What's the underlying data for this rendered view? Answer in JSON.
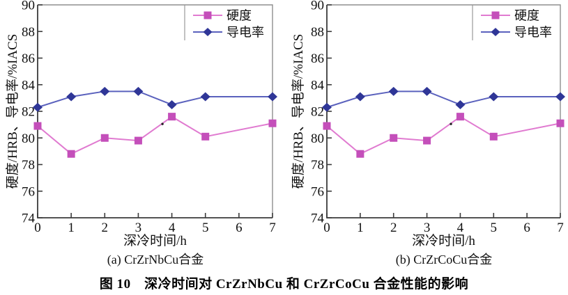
{
  "figure": {
    "caption": "图 10　深冷时间对 CrZrNbCu 和 CrZrCoCu 合金性能的影响"
  },
  "axes": {
    "y_label": "硬度/HRB、导电率/%IACS",
    "x_label": "深冷时间/h",
    "y_ticks": [
      74,
      76,
      78,
      80,
      82,
      84,
      86,
      88,
      90
    ],
    "x_ticks": [
      0,
      1,
      2,
      3,
      4,
      5,
      6,
      7
    ],
    "y_range": [
      74,
      90
    ],
    "x_range": [
      0,
      7
    ]
  },
  "legend": {
    "position": "top-right",
    "entries": [
      "硬度",
      "导电率"
    ]
  },
  "colors": {
    "hardness_marker": "#c44fba",
    "hardness_line": "#e07ad0",
    "conductivity_marker": "#2f3697",
    "conductivity_line": "#5a61bd",
    "axis": "#3b3b3b",
    "frame_light": "#8f8f8f",
    "legend_border": "#999999",
    "speck": "#222222"
  },
  "chart_data": [
    {
      "type": "line",
      "title": "(a) CrZrNbCu合金",
      "x": [
        0,
        1,
        2,
        3,
        4,
        5,
        7
      ],
      "series": [
        {
          "name": "硬度",
          "marker": "square",
          "values": [
            80.9,
            78.8,
            80.0,
            79.8,
            81.6,
            80.1,
            81.1
          ]
        },
        {
          "name": "导电率",
          "marker": "diamond",
          "values": [
            82.3,
            83.1,
            83.5,
            83.5,
            82.5,
            83.1,
            83.1
          ]
        }
      ],
      "xlabel": "深冷时间/h",
      "ylabel": "硬度/HRB、导电率/%IACS",
      "xlim": [
        0,
        7
      ],
      "ylim": [
        74,
        90
      ],
      "grid": false,
      "legend_position": "top-right",
      "speck": {
        "x": 3.72,
        "y": 81.05
      }
    },
    {
      "type": "line",
      "title": "(b) CrZrCoCu合金",
      "x": [
        0,
        1,
        2,
        3,
        4,
        5,
        7
      ],
      "series": [
        {
          "name": "硬度",
          "marker": "square",
          "values": [
            80.9,
            78.8,
            80.0,
            79.8,
            81.6,
            80.1,
            81.1
          ]
        },
        {
          "name": "导电率",
          "marker": "diamond",
          "values": [
            82.3,
            83.1,
            83.5,
            83.5,
            82.5,
            83.1,
            83.1
          ]
        }
      ],
      "xlabel": "深冷时间/h",
      "ylabel": "硬度/HRB、导电率/%IACS",
      "xlim": [
        0,
        7
      ],
      "ylim": [
        74,
        90
      ],
      "grid": false,
      "legend_position": "top-right",
      "speck": {
        "x": 3.72,
        "y": 81.05
      }
    }
  ]
}
